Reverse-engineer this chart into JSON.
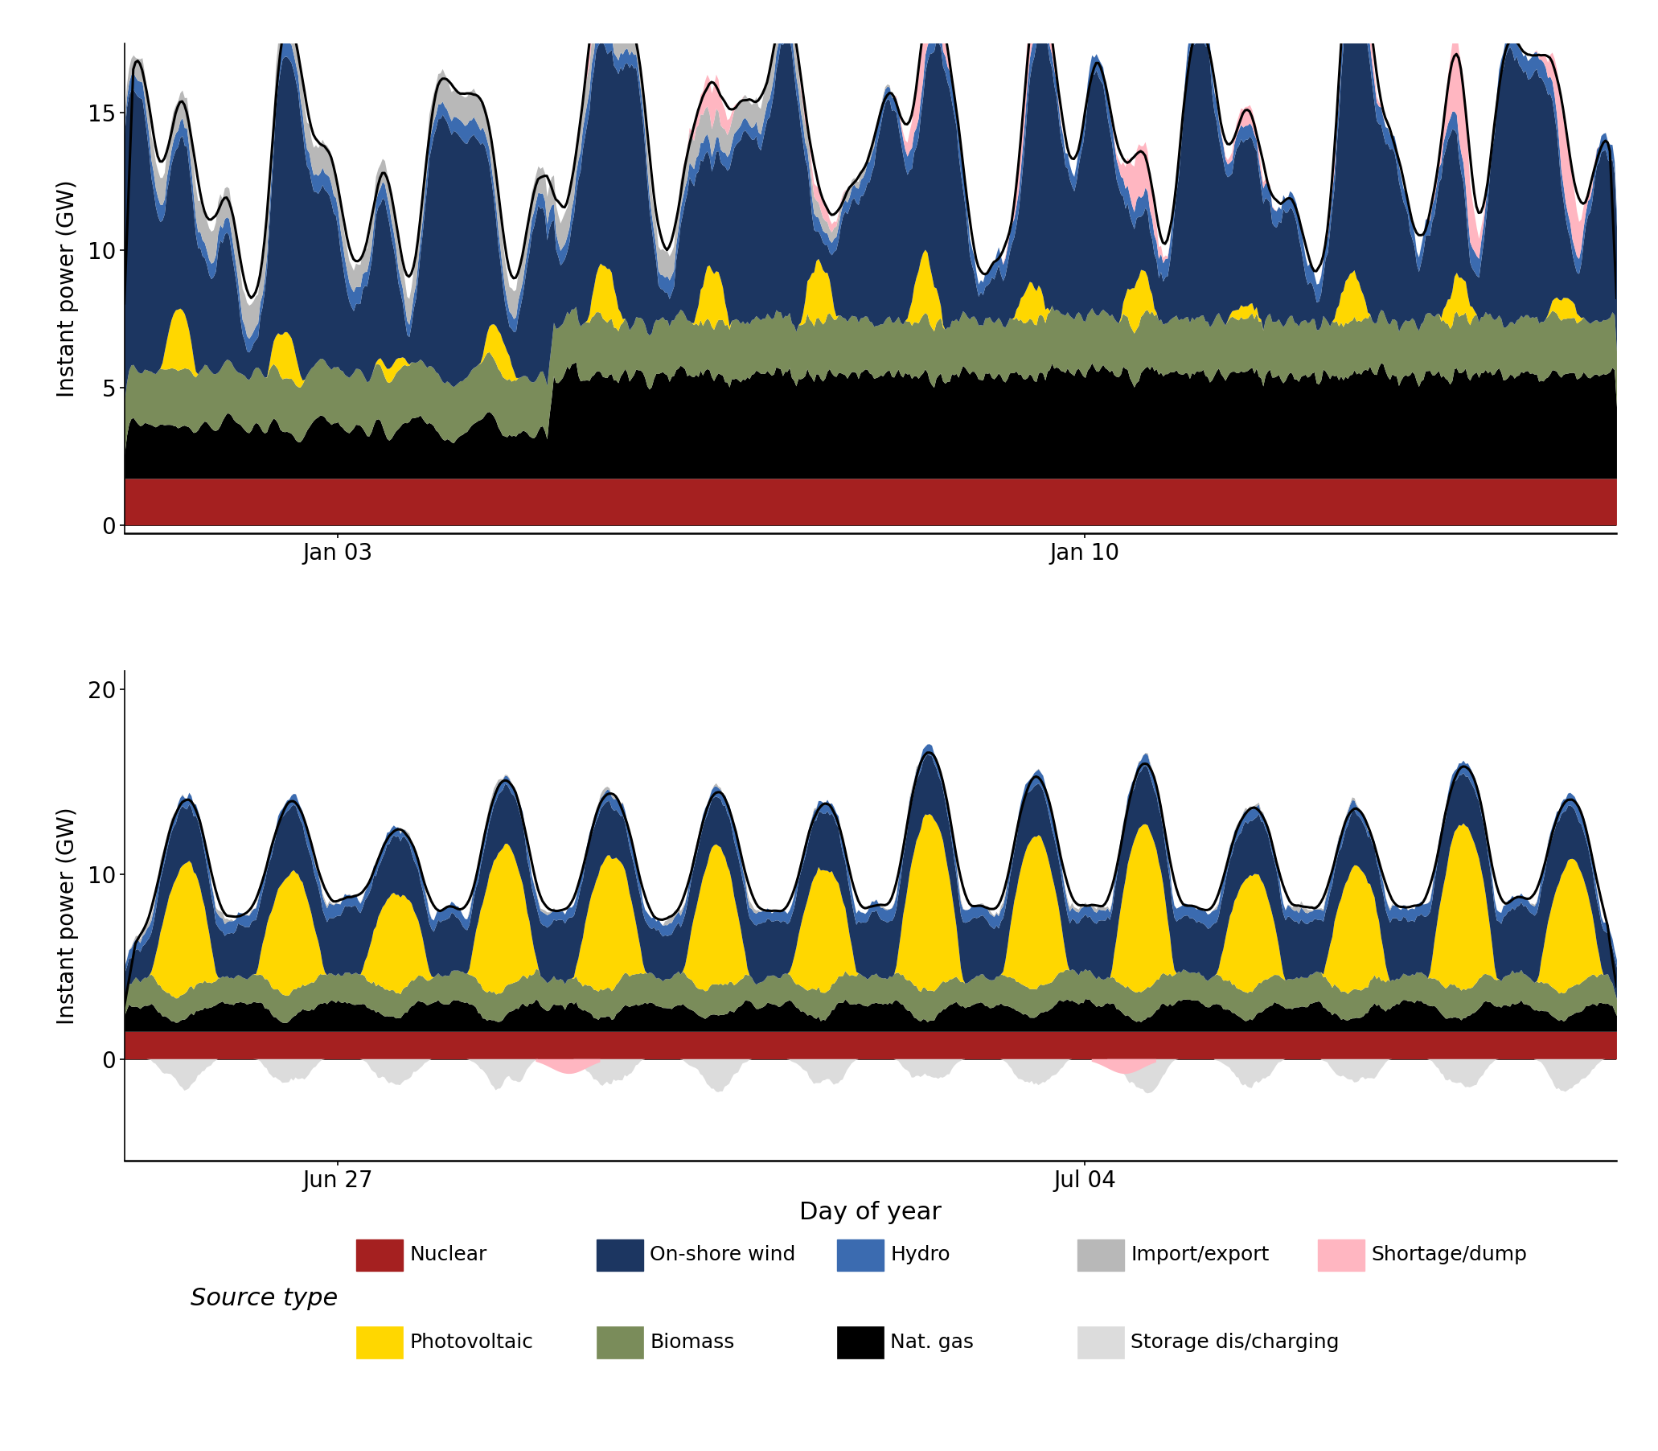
{
  "top_panel": {
    "ylabel": "Instant power (GW)",
    "ylim": [
      -0.3,
      17.5
    ],
    "yticks": [
      0,
      5,
      10,
      15
    ],
    "n_points": 672,
    "xtick_labels": [
      "Jan 03",
      "Jan 10"
    ],
    "xtick_positions": [
      96,
      432
    ]
  },
  "bottom_panel": {
    "ylabel": "Instant power (GW)",
    "ylim": [
      -5.5,
      21
    ],
    "yticks": [
      0,
      10,
      20
    ],
    "n_points": 672,
    "xtick_labels": [
      "Jun 27",
      "Jul 04"
    ],
    "xtick_positions": [
      96,
      432
    ]
  },
  "colors": {
    "nuclear": "#A52020",
    "photovoltaic": "#FFD700",
    "onshore_wind": "#1C3661",
    "biomass": "#7A8C5A",
    "hydro": "#3B6BB0",
    "nat_gas": "#000000",
    "import_export": "#B8B8B8",
    "storage": "#DCDCDC",
    "shortage_dump": "#FFB6C1",
    "demand_line": "#000000"
  },
  "legend": {
    "title": "Source type",
    "entries_row1": [
      {
        "label": "Nuclear",
        "color": "#A52020"
      },
      {
        "label": "On-shore wind",
        "color": "#1C3661"
      },
      {
        "label": "Hydro",
        "color": "#3B6BB0"
      },
      {
        "label": "Import/export",
        "color": "#B8B8B8"
      },
      {
        "label": "Shortage/dump",
        "color": "#FFB6C1"
      }
    ],
    "entries_row2": [
      {
        "label": "Photovoltaic",
        "color": "#FFD700"
      },
      {
        "label": "Biomass",
        "color": "#7A8C5A"
      },
      {
        "label": "Nat. gas",
        "color": "#000000"
      },
      {
        "label": "Storage dis/charging",
        "color": "#DCDCDC"
      }
    ]
  },
  "xlabel": "Day of year",
  "background_color": "#FFFFFF"
}
